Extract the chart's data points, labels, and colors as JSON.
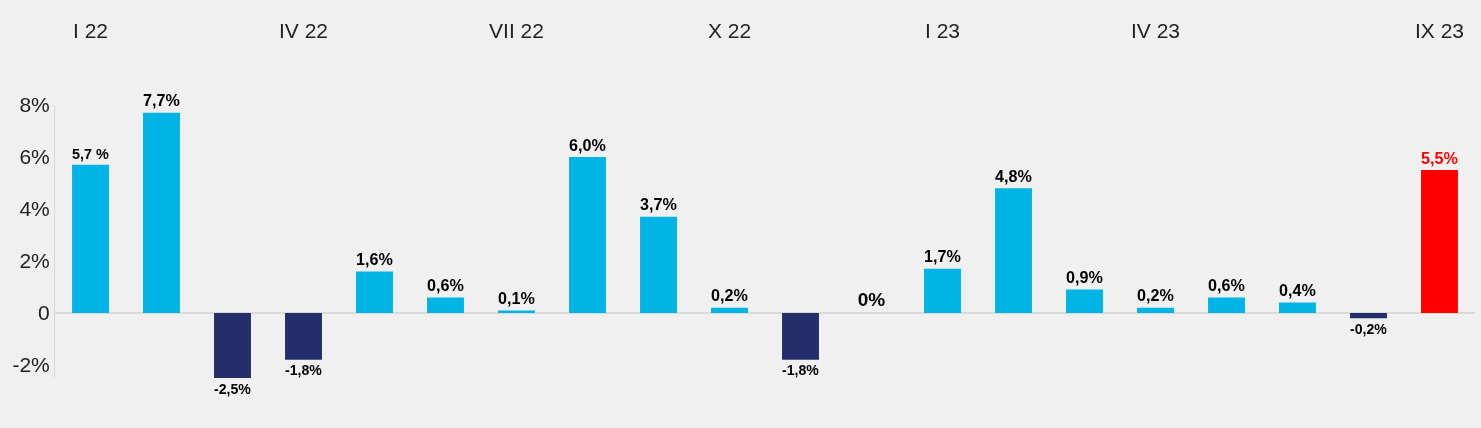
{
  "chart_data": {
    "type": "bar",
    "categories": [
      "I 22",
      null,
      null,
      "IV 22",
      null,
      null,
      "VII 22",
      null,
      null,
      "X 22",
      null,
      null,
      "I 23",
      null,
      null,
      "IV 23",
      null,
      null,
      null,
      "IX 23"
    ],
    "values": [
      5.7,
      7.7,
      -2.5,
      -1.8,
      1.6,
      0.6,
      0.1,
      6.0,
      3.7,
      0.2,
      -1.8,
      0,
      1.7,
      4.8,
      0.9,
      0.2,
      0.6,
      0.4,
      -0.2,
      5.5
    ],
    "value_labels": [
      "5,7 %",
      "7,7%",
      "-2,5%",
      "-1,8%",
      "1,6%",
      "0,6%",
      "0,1%",
      "6,0%",
      "3,7%",
      "0,2%",
      "-1,8%",
      "0%",
      "1,7%",
      "4,8%",
      "0,9%",
      "0,2%",
      "0,6%",
      "0,4%",
      "-0,2%",
      "5,5%"
    ],
    "colors": [
      "#00b4e6",
      "#00b4e6",
      "#232d69",
      "#232d69",
      "#00b4e6",
      "#00b4e6",
      "#00b4e6",
      "#00b4e6",
      "#00b4e6",
      "#00b4e6",
      "#232d69",
      "#00b4e6",
      "#00b4e6",
      "#00b4e6",
      "#00b4e6",
      "#00b4e6",
      "#00b4e6",
      "#00b4e6",
      "#232d69",
      "#ff0000"
    ],
    "ylim": [
      -2.5,
      8
    ],
    "yticks": [
      {
        "value": -2,
        "label": "-2%"
      },
      {
        "value": 0,
        "label": "0"
      },
      {
        "value": 2,
        "label": "2%"
      },
      {
        "value": 4,
        "label": "4%"
      },
      {
        "value": 6,
        "label": "6%"
      },
      {
        "value": 8,
        "label": "8%"
      }
    ],
    "ref_lines": [
      {
        "axis": "y",
        "value": 0,
        "color": "#d9d9d9"
      }
    ]
  }
}
